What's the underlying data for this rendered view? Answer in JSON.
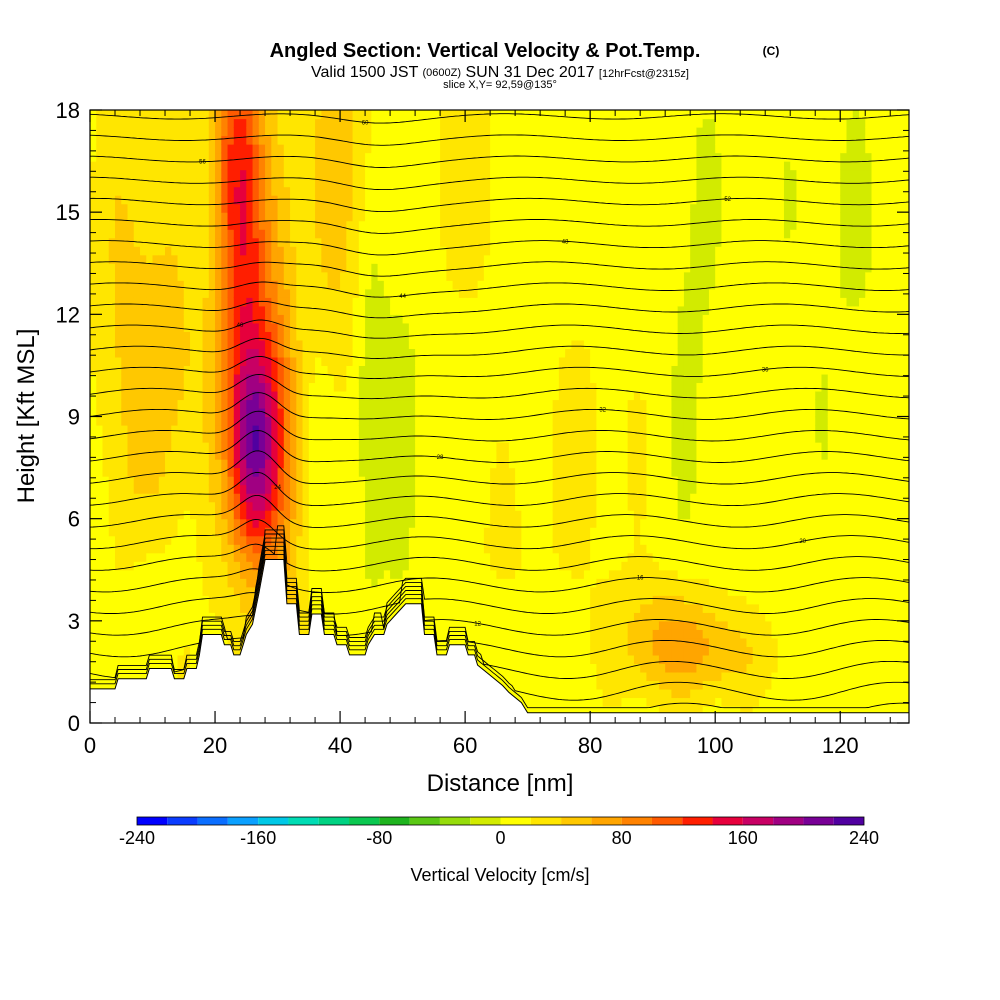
{
  "title": {
    "main": "Angled Section: Vertical Velocity & Pot.Temp.",
    "main_unit": "(C)",
    "valid_prefix": "Valid 1500 JST",
    "valid_utc": "(0600Z)",
    "valid_date": "SUN 31 Dec 2017",
    "forecast": "[12hrFcst@2315z]",
    "slice": "slice X,Y= 92,59@135°"
  },
  "chart_data": {
    "type": "heatmap",
    "xlabel": "Distance [nm]",
    "ylabel": "Height [Kft MSL]",
    "xlim": [
      0,
      131
    ],
    "ylim": [
      0,
      18
    ],
    "x_ticks": [
      "0",
      "20",
      "40",
      "60",
      "80",
      "100",
      "120"
    ],
    "y_ticks": [
      "0",
      "3",
      "6",
      "9",
      "12",
      "15",
      "18"
    ],
    "terrain_kft": [
      [
        0,
        1.0
      ],
      [
        4,
        1.0
      ],
      [
        4.5,
        1.3
      ],
      [
        9,
        1.3
      ],
      [
        9.5,
        1.6
      ],
      [
        13,
        1.6
      ],
      [
        13.5,
        1.3
      ],
      [
        15,
        1.3
      ],
      [
        15.5,
        1.6
      ],
      [
        17,
        1.6
      ],
      [
        17.5,
        2.0
      ],
      [
        18,
        2.6
      ],
      [
        21,
        2.6
      ],
      [
        21.5,
        2.3
      ],
      [
        22.5,
        2.3
      ],
      [
        23,
        2.0
      ],
      [
        24,
        2.0
      ],
      [
        24.5,
        2.3
      ],
      [
        25,
        2.6
      ],
      [
        26,
        2.9
      ],
      [
        27,
        3.8
      ],
      [
        28,
        4.8
      ],
      [
        31,
        4.8
      ],
      [
        31.5,
        3.5
      ],
      [
        33,
        3.5
      ],
      [
        33.5,
        2.6
      ],
      [
        35,
        2.6
      ],
      [
        35.5,
        3.2
      ],
      [
        37,
        3.2
      ],
      [
        37.5,
        2.6
      ],
      [
        39,
        2.6
      ],
      [
        39.5,
        2.3
      ],
      [
        41,
        2.3
      ],
      [
        41.5,
        2.0
      ],
      [
        44,
        2.0
      ],
      [
        44.5,
        2.3
      ],
      [
        45.5,
        2.6
      ],
      [
        47,
        2.6
      ],
      [
        47.5,
        2.9
      ],
      [
        49,
        3.2
      ],
      [
        50.5,
        3.5
      ],
      [
        53,
        3.5
      ],
      [
        53.5,
        2.6
      ],
      [
        55,
        2.6
      ],
      [
        55.5,
        2.0
      ],
      [
        57,
        2.0
      ],
      [
        57.5,
        2.3
      ],
      [
        60,
        2.3
      ],
      [
        60.5,
        2.0
      ],
      [
        61.5,
        2.0
      ],
      [
        62,
        1.7
      ],
      [
        64,
        1.4
      ],
      [
        66,
        1.1
      ],
      [
        67,
        0.9
      ],
      [
        69,
        0.6
      ],
      [
        70,
        0.3
      ],
      [
        131,
        0.3
      ]
    ],
    "colorbar": {
      "label": "Vertical Velocity [cm/s]",
      "min": -240,
      "max": 240,
      "step": 20,
      "tick_labels": [
        "-240",
        "-160",
        "-80",
        "0",
        "80",
        "160",
        "240"
      ],
      "colors": [
        "#0000ff",
        "#0a3cff",
        "#0a6eff",
        "#0aa0ff",
        "#00c8e6",
        "#00dcb4",
        "#00d282",
        "#0ac850",
        "#1eb41e",
        "#5ac814",
        "#96dc0a",
        "#d2eb00",
        "#ffff00",
        "#ffe600",
        "#ffc800",
        "#ffa500",
        "#ff8200",
        "#ff5a00",
        "#ff1e00",
        "#e6003c",
        "#c80064",
        "#a00082",
        "#780096",
        "#5000a0"
      ]
    },
    "velocity_features_cm_s": [
      {
        "x": 26.5,
        "z": 8.0,
        "value": 150,
        "sx": 2.6,
        "sz": 2.2
      },
      {
        "x": 25,
        "z": 12.0,
        "value": 90,
        "sx": 3.0,
        "sz": 4.5
      },
      {
        "x": 23,
        "z": 17.0,
        "value": 80,
        "sx": 3.0,
        "sz": 3.0
      },
      {
        "x": 31,
        "z": 9.0,
        "value": 55,
        "sx": 2.5,
        "sz": 6.0
      },
      {
        "x": 40,
        "z": 16.0,
        "value": 45,
        "sx": 4.0,
        "sz": 4.0
      },
      {
        "x": 6,
        "z": 12.0,
        "value": 35,
        "sx": 4.0,
        "sz": 6.0
      },
      {
        "x": 13,
        "z": 9.0,
        "value": 30,
        "sx": 3.5,
        "sz": 5.0
      },
      {
        "x": 18,
        "z": 7.0,
        "value": 25,
        "sx": 4.0,
        "sz": 4.0
      },
      {
        "x": 16,
        "z": 6.0,
        "value": -25,
        "sx": 3.0,
        "sz": 2.5
      },
      {
        "x": 10,
        "z": 3.5,
        "value": -20,
        "sx": 3.0,
        "sz": 2.0
      },
      {
        "x": 45,
        "z": 10.5,
        "value": -30,
        "sx": 2.0,
        "sz": 4.0
      },
      {
        "x": 50,
        "z": 8.5,
        "value": -20,
        "sx": 1.8,
        "sz": 3.0
      },
      {
        "x": 34,
        "z": 13.0,
        "value": -10,
        "sx": 2.0,
        "sz": 3.0
      },
      {
        "x": 93,
        "z": 2.5,
        "value": 45,
        "sx": 6.0,
        "sz": 1.2
      },
      {
        "x": 100,
        "z": 2.0,
        "value": 30,
        "sx": 8.0,
        "sz": 1.0
      },
      {
        "x": 96,
        "z": 12.0,
        "value": -12,
        "sx": 3.0,
        "sz": 6.0
      },
      {
        "x": 120,
        "z": 14.0,
        "value": -8,
        "sx": 6.0,
        "sz": 4.0
      },
      {
        "x": 60,
        "z": 16.0,
        "value": 20,
        "sx": 6.0,
        "sz": 3.0
      },
      {
        "x": 80,
        "z": 8.0,
        "value": 15,
        "sx": 8.0,
        "sz": 4.0
      },
      {
        "x": 65,
        "z": 5.0,
        "value": 10,
        "sx": 6.0,
        "sz": 2.0
      }
    ],
    "theta_contours": {
      "levels_c": [
        4,
        6,
        8,
        10,
        12,
        14,
        16,
        18,
        20,
        22,
        24,
        26,
        28,
        30,
        32,
        34,
        36,
        38,
        40,
        42,
        44,
        46,
        48,
        50,
        52,
        54,
        56,
        58,
        60
      ],
      "label_every": 2
    }
  }
}
